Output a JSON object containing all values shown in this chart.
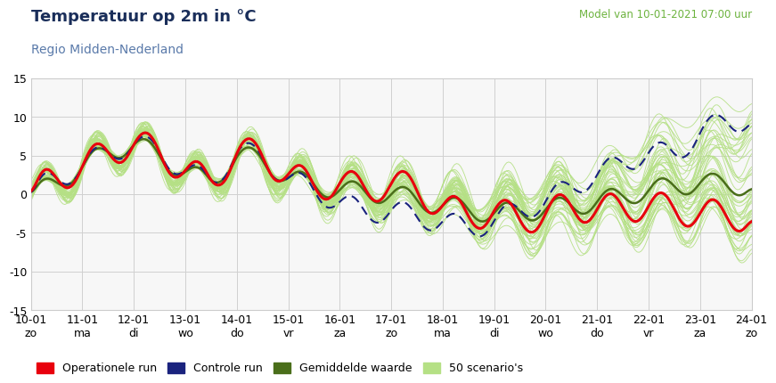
{
  "title": "Temperatuur op 2m in °C",
  "subtitle": "Regio Midden-Nederland",
  "model_info": "Model van 10-01-2021 07:00 uur",
  "model_info_color": "#6db33f",
  "title_color": "#1a2e5a",
  "subtitle_color": "#5a7aaa",
  "background_color": "#ffffff",
  "plot_bg_color": "#f7f7f7",
  "grid_color": "#d0d0d0",
  "ylim": [
    -15,
    15
  ],
  "yticks": [
    -15,
    -10,
    -5,
    0,
    5,
    10,
    15
  ],
  "n_days": 15,
  "x_tick_labels": [
    "10-01\nzo",
    "11-01\nma",
    "12-01\ndi",
    "13-01\nwo",
    "14-01\ndo",
    "15-01\nvr",
    "16-01\nza",
    "17-01\nzo",
    "18-01\nma",
    "19-01\ndi",
    "20-01\nwo",
    "21-01\ndo",
    "22-01\nvr",
    "23-01\nza",
    "24-01\nzo"
  ],
  "color_operational": "#e8000d",
  "color_control": "#1a237e",
  "color_mean": "#4a6e1a",
  "color_scenarios": "#b5e085",
  "legend_labels": [
    "Operationele run",
    "Controle run",
    "Gemiddelde waarde",
    "50 scenario's"
  ],
  "title_fontsize": 13,
  "subtitle_fontsize": 10,
  "axis_fontsize": 9
}
